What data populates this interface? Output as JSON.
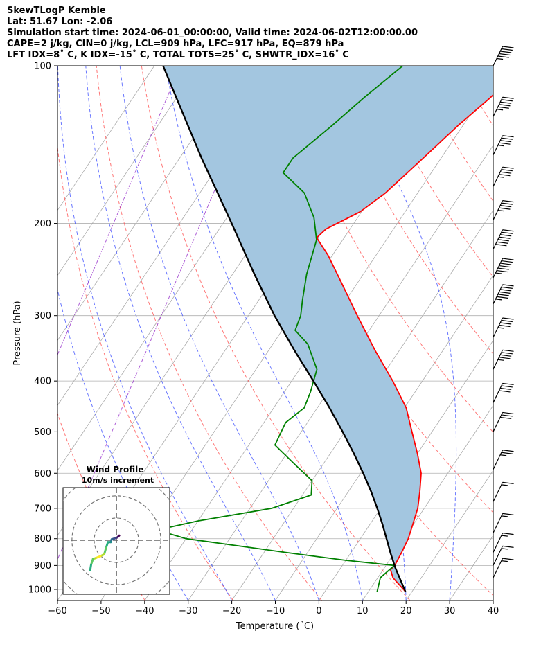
{
  "header": {
    "line1": "SkewTLogP Kemble",
    "line2": "Lat: 51.67   Lon: -2.06",
    "line3": "Simulation start time: 2024-06-01_00:00:00, Valid time: 2024-06-02T12:00:00.00",
    "line4": "CAPE=2 j/kg, CIN=0 j/kg, LCL=909 hPa, LFC=917 hPa, EQ=879 hPa",
    "line5": "LFT IDX=8˚ C, K IDX=-15˚ C, TOTAL TOTS=25˚ C, SHWTR_IDX=16˚ C"
  },
  "chart_data": {
    "type": "line",
    "subtype": "skew-t log-p diagram",
    "xlabel": "Temperature (˚C)",
    "ylabel": "Pressure (hPa)",
    "xlim": [
      -60,
      40
    ],
    "ylim": [
      1050,
      100
    ],
    "y_scale": "log",
    "x_ticks": [
      -60,
      -50,
      -40,
      -30,
      -20,
      -10,
      0,
      10,
      20,
      30,
      40
    ],
    "x_tick_labels": [
      "−60",
      "−50",
      "−40",
      "−30",
      "−20",
      "−10",
      "0",
      "10",
      "20",
      "30",
      "40"
    ],
    "y_ticks": [
      100,
      200,
      300,
      400,
      500,
      600,
      700,
      800,
      900,
      1000
    ],
    "y_tick_labels": [
      "100",
      "200",
      "300",
      "400",
      "500",
      "600",
      "700",
      "800",
      "900",
      "1000"
    ],
    "grid": true,
    "background_lines": {
      "isotherms": {
        "color": "#aaaaaa",
        "values": [
          -120,
          -110,
          -100,
          -90,
          -80,
          -70,
          -60,
          -50,
          -40,
          -30,
          -20,
          -10,
          0,
          10,
          20,
          30,
          40
        ]
      },
      "dry_adiabats": {
        "color": "#ff5555",
        "theta_K": [
          230,
          250,
          270,
          290,
          310,
          330,
          350,
          370,
          390,
          410,
          430,
          450
        ]
      },
      "moist_adiabats": {
        "color": "#4455ff",
        "start_temp_C": [
          -30,
          -20,
          -10,
          0,
          10,
          20,
          30,
          40
        ]
      },
      "mixing_ratio_lines": {
        "color": "#9933cc",
        "count": 2
      }
    },
    "series": [
      {
        "role": "temperature",
        "color": "#ff0000",
        "points": [
          {
            "p": 1010,
            "t": 18.5
          },
          {
            "p": 950,
            "t": 13.5
          },
          {
            "p": 917,
            "t": 11.7
          },
          {
            "p": 900,
            "t": 12.0
          },
          {
            "p": 850,
            "t": 11.6
          },
          {
            "p": 800,
            "t": 11.0
          },
          {
            "p": 750,
            "t": 9.8
          },
          {
            "p": 700,
            "t": 8.5
          },
          {
            "p": 650,
            "t": 6.4
          },
          {
            "p": 600,
            "t": 3.9
          },
          {
            "p": 550,
            "t": 0.0
          },
          {
            "p": 500,
            "t": -4.6
          },
          {
            "p": 450,
            "t": -9.6
          },
          {
            "p": 400,
            "t": -16.8
          },
          {
            "p": 350,
            "t": -25.5
          },
          {
            "p": 300,
            "t": -35.0
          },
          {
            "p": 260,
            "t": -43.6
          },
          {
            "p": 230,
            "t": -51.0
          },
          {
            "p": 213,
            "t": -56.3
          },
          {
            "p": 205,
            "t": -55.5
          },
          {
            "p": 190,
            "t": -50.3
          },
          {
            "p": 175,
            "t": -47.4
          },
          {
            "p": 150,
            "t": -44.1
          },
          {
            "p": 130,
            "t": -41.1
          },
          {
            "p": 115,
            "t": -38.0
          },
          {
            "p": 100,
            "t": -35.4
          }
        ]
      },
      {
        "role": "dewpoint",
        "color": "#008000",
        "points": [
          {
            "p": 1010,
            "t": 12.0
          },
          {
            "p": 950,
            "t": 10.6
          },
          {
            "p": 900,
            "t": 11.9
          },
          {
            "p": 880,
            "t": 0.0
          },
          {
            "p": 850,
            "t": -15.0
          },
          {
            "p": 800,
            "t": -40.0
          },
          {
            "p": 770,
            "t": -48.0
          },
          {
            "p": 740,
            "t": -40.0
          },
          {
            "p": 700,
            "t": -25.0
          },
          {
            "p": 660,
            "t": -18.0
          },
          {
            "p": 620,
            "t": -20.0
          },
          {
            "p": 580,
            "t": -26.0
          },
          {
            "p": 530,
            "t": -34.0
          },
          {
            "p": 480,
            "t": -35.0
          },
          {
            "p": 450,
            "t": -33.0
          },
          {
            "p": 420,
            "t": -34.0
          },
          {
            "p": 380,
            "t": -36.0
          },
          {
            "p": 340,
            "t": -42.0
          },
          {
            "p": 320,
            "t": -47.0
          },
          {
            "p": 300,
            "t": -48.0
          },
          {
            "p": 280,
            "t": -50.0
          },
          {
            "p": 250,
            "t": -53.0
          },
          {
            "p": 215,
            "t": -56.0
          },
          {
            "p": 195,
            "t": -60.0
          },
          {
            "p": 175,
            "t": -66.0
          },
          {
            "p": 160,
            "t": -74.0
          },
          {
            "p": 150,
            "t": -74.0
          },
          {
            "p": 130,
            "t": -70.0
          },
          {
            "p": 115,
            "t": -67.0
          },
          {
            "p": 100,
            "t": -63.0
          }
        ]
      },
      {
        "role": "parcel",
        "color": "#000000",
        "points": [
          {
            "p": 1010,
            "t": 18.5
          },
          {
            "p": 909,
            "t": 12.5
          },
          {
            "p": 850,
            "t": 9.0
          },
          {
            "p": 800,
            "t": 6.0
          },
          {
            "p": 750,
            "t": 2.8
          },
          {
            "p": 700,
            "t": -0.8
          },
          {
            "p": 650,
            "t": -4.8
          },
          {
            "p": 600,
            "t": -9.4
          },
          {
            "p": 550,
            "t": -14.6
          },
          {
            "p": 500,
            "t": -20.5
          },
          {
            "p": 450,
            "t": -27.2
          },
          {
            "p": 400,
            "t": -35.0
          },
          {
            "p": 350,
            "t": -44.0
          },
          {
            "p": 300,
            "t": -54.0
          },
          {
            "p": 250,
            "t": -65.0
          },
          {
            "p": 200,
            "t": -78.0
          },
          {
            "p": 150,
            "t": -95.0
          },
          {
            "p": 100,
            "t": -118.0
          }
        ]
      }
    ],
    "cape_shading": {
      "color": "#a3c6e0"
    },
    "wind_barbs": [
      {
        "p": 100,
        "speed_kt": 55
      },
      {
        "p": 125,
        "speed_kt": 55
      },
      {
        "p": 148,
        "speed_kt": 45
      },
      {
        "p": 170,
        "speed_kt": 45
      },
      {
        "p": 197,
        "speed_kt": 45
      },
      {
        "p": 224,
        "speed_kt": 70
      },
      {
        "p": 254,
        "speed_kt": 65
      },
      {
        "p": 285,
        "speed_kt": 65
      },
      {
        "p": 330,
        "speed_kt": 45
      },
      {
        "p": 380,
        "speed_kt": 45
      },
      {
        "p": 440,
        "speed_kt": 40
      },
      {
        "p": 500,
        "speed_kt": 30
      },
      {
        "p": 590,
        "speed_kt": 25
      },
      {
        "p": 680,
        "speed_kt": 15
      },
      {
        "p": 780,
        "speed_kt": 15
      },
      {
        "p": 850,
        "speed_kt": 15
      },
      {
        "p": 900,
        "speed_kt": 15
      },
      {
        "p": 950,
        "speed_kt": 15
      }
    ],
    "inset": {
      "title": "Wind Profile",
      "subtitle": "10m/s increment",
      "hodograph": [
        {
          "u": 1.5,
          "v": 2.5
        },
        {
          "u": 0.5,
          "v": 1.5
        },
        {
          "u": -1.0,
          "v": 1.0
        },
        {
          "u": -2.5,
          "v": 0.5
        },
        {
          "u": -3.0,
          "v": -1.0
        },
        {
          "u": -4.5,
          "v": -1.0
        },
        {
          "u": -5.5,
          "v": -4.0
        },
        {
          "u": -6.5,
          "v": -7.5
        },
        {
          "u": -8.5,
          "v": -8.5
        },
        {
          "u": -11.0,
          "v": -9.5
        },
        {
          "u": -12.5,
          "v": -10.0
        },
        {
          "u": -13.5,
          "v": -13.0
        },
        {
          "u": -14.0,
          "v": -16.0
        }
      ]
    }
  }
}
